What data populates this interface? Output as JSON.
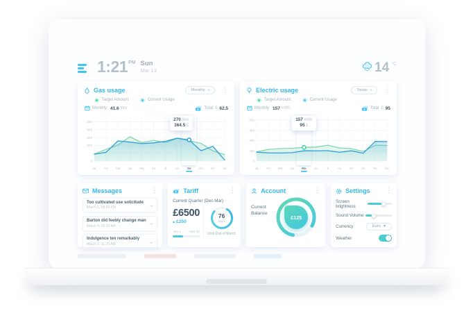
{
  "header": {
    "time": "1:21",
    "meridiem": "PM",
    "weekday": "Sun",
    "date": "Mar 13",
    "temperature": "14",
    "temperature_unit": "°C"
  },
  "icons": {
    "caret_down": "▾",
    "kebab": "⋮",
    "arrow_right": "→",
    "delta_up": "▴"
  },
  "gas_card": {
    "title": "Gas usage",
    "period": "Monthly",
    "legend": {
      "target": "Target Amount",
      "current": "Current Usage"
    },
    "meta": {
      "period_label": "Monthly",
      "amount": "41.6",
      "unit": "litre",
      "total_label": "Total",
      "total_currency": "£",
      "total_amount": "62.5"
    }
  },
  "electric_card": {
    "title": "Electric usage",
    "period": "Today",
    "legend": {
      "target": "Target Amount",
      "current": "Current Usage"
    },
    "meta": {
      "period_label": "Monthly",
      "amount": "157",
      "unit": "kWh",
      "total_label": "Total",
      "total_currency": "£",
      "total_amount": "95"
    }
  },
  "chart_data": [
    {
      "type": "area",
      "title": "Gas usage",
      "grid": true,
      "legend_position": "top-left",
      "categories": [
        "Ja",
        "Fe",
        "Ma",
        "Ap",
        "Ma",
        "Ju",
        "Jl",
        "Au",
        "Se",
        "Oc",
        "No",
        "De"
      ],
      "ylim": [
        0,
        540
      ],
      "yticks": [
        {
          "v": 0,
          "label": "0"
        },
        {
          "v": 100,
          "label": ""
        },
        {
          "v": 200,
          "label": "200"
        },
        {
          "v": 300,
          "label": "300"
        },
        {
          "v": 400,
          "label": "400"
        },
        {
          "v": 500,
          "label": "500"
        }
      ],
      "series": [
        {
          "name": "Target Amount",
          "color": "#82d6b0",
          "fill": "rgba(130,214,176,.22)",
          "values": [
            90,
            150,
            205,
            310,
            235,
            265,
            235,
            290,
            260,
            225,
            130,
            80
          ]
        },
        {
          "name": "Current Usage",
          "color": "#2f9fd6",
          "values": [
            88,
            112,
            258,
            242,
            222,
            232,
            252,
            292,
            270,
            132,
            188,
            12
          ]
        }
      ],
      "highlight_index": 8,
      "highlight_label": "Se",
      "marker": {
        "series": 1,
        "color": "#2f9fd6"
      },
      "tooltip": {
        "anchor": "right",
        "lines": [
          {
            "value": "270",
            "unit": "litre"
          },
          {
            "value": "364.5",
            "unit": "£"
          }
        ]
      }
    },
    {
      "type": "area",
      "title": "Electric usage",
      "grid": true,
      "legend_position": "top-left",
      "categories": [
        "Ja",
        "Fe",
        "Ma",
        "Ap",
        "Ma",
        "Ju",
        "Jl",
        "Au",
        "Se",
        "Oc",
        "No",
        "De"
      ],
      "ylim": [
        0,
        620
      ],
      "yticks": [
        {
          "v": 0,
          "label": "0"
        },
        {
          "v": 150,
          "label": "150"
        },
        {
          "v": 300,
          "label": "300"
        },
        {
          "v": 450,
          "label": "450"
        },
        {
          "v": 600,
          "label": "600"
        }
      ],
      "series": [
        {
          "name": "Target Amount",
          "color": "#82d6b0",
          "fill": "rgba(130,214,176,.22)",
          "values": [
            135,
            172,
            182,
            188,
            200,
            205,
            232,
            192,
            182,
            140,
            232,
            228
          ]
        },
        {
          "name": "Current Usage",
          "color": "#2f9fd6",
          "values": [
            130,
            120,
            118,
            123,
            150,
            148,
            152,
            128,
            150,
            115,
            288,
            285
          ]
        }
      ],
      "highlight_index": 4,
      "highlight_label": "Ma",
      "marker": {
        "series": 0,
        "color": "#3fd0a4"
      },
      "tooltip": {
        "anchor": "center",
        "lines": [
          {
            "value": "157",
            "unit": "kWh"
          },
          {
            "value": "95",
            "unit": "£"
          }
        ]
      }
    }
  ],
  "messages_card": {
    "title": "Messages",
    "items": [
      {
        "text": "Too cultivated use solicitude",
        "date": "March 5, 08.55 PM"
      },
      {
        "text": "Barton did feebly change man",
        "date": "March 4, 02.30 AM"
      },
      {
        "text": "Indulgence ten remarkably",
        "date": "March 2, 11.20 AM"
      }
    ]
  },
  "tariff_card": {
    "title": "Tariff",
    "subtitle": "Current Quarter (Dec-Mar)",
    "amount": "£6500",
    "delta": "£250",
    "range_start": "Jan 1",
    "range_end": "Mar 31",
    "range_progress": 0.38,
    "days_value": "76",
    "days_label": "days",
    "days_progress": 0.78,
    "footnote": "Until End of March"
  },
  "account_card": {
    "title": "Account",
    "balance_label": "Current Balance",
    "balance_value": "£125",
    "gauge_progress": 0.8
  },
  "settings_card": {
    "title": "Settings",
    "rows": [
      {
        "label": "Screen brightness",
        "type": "slider",
        "value": 0.65
      },
      {
        "label": "Sound Volume",
        "type": "slider",
        "value": 0.32
      },
      {
        "label": "Currency",
        "type": "select",
        "value": "Euro"
      },
      {
        "label": "Weather",
        "type": "toggle",
        "value": true
      }
    ]
  },
  "colors": {
    "accent_blue": "#41c3f0",
    "line_blue": "#2f9fd6",
    "green": "#3ed598",
    "teal": "#4fd0c0",
    "text_dark": "#3e5463",
    "text_gray": "#90a4ae",
    "text_light": "#bcc9d2"
  }
}
